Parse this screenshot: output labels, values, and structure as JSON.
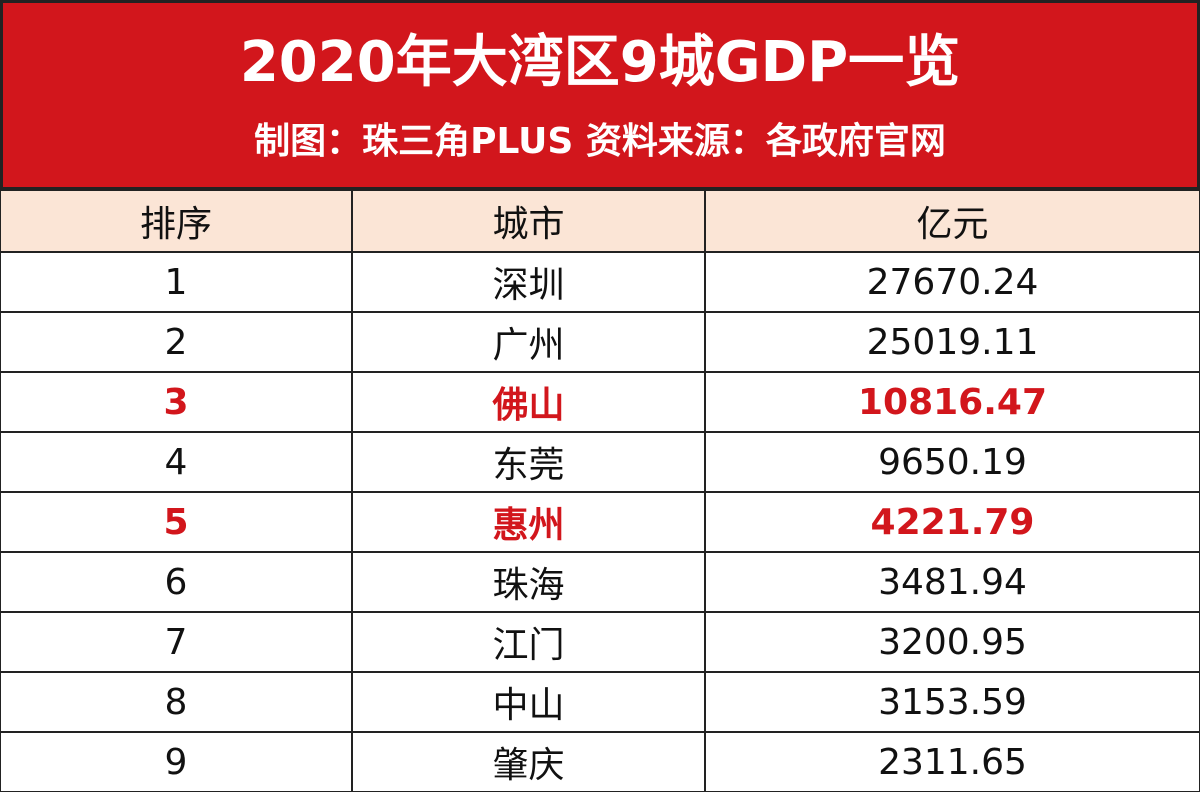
{
  "header": {
    "title": "2020年大湾区9城GDP一览",
    "subtitle": "制图：珠三角PLUS  资料来源：各政府官网",
    "color": "#d2161c"
  },
  "table": {
    "columns": [
      "排序",
      "城市",
      "亿元"
    ],
    "highlight_color": "#d2161c",
    "rows": [
      {
        "cells": [
          "1",
          "深圳",
          "27670.24"
        ],
        "highlight": false
      },
      {
        "cells": [
          "2",
          "广州",
          "25019.11"
        ],
        "highlight": false
      },
      {
        "cells": [
          "3",
          "佛山",
          "10816.47"
        ],
        "highlight": true
      },
      {
        "cells": [
          "4",
          "东莞",
          "9650.19"
        ],
        "highlight": false
      },
      {
        "cells": [
          "5",
          "惠州",
          "4221.79"
        ],
        "highlight": true
      },
      {
        "cells": [
          "6",
          "珠海",
          "3481.94"
        ],
        "highlight": false
      },
      {
        "cells": [
          "7",
          "江门",
          "3200.95"
        ],
        "highlight": false
      },
      {
        "cells": [
          "8",
          "中山",
          "3153.59"
        ],
        "highlight": false
      },
      {
        "cells": [
          "9",
          "肇庆",
          "2311.65"
        ],
        "highlight": false
      }
    ]
  }
}
